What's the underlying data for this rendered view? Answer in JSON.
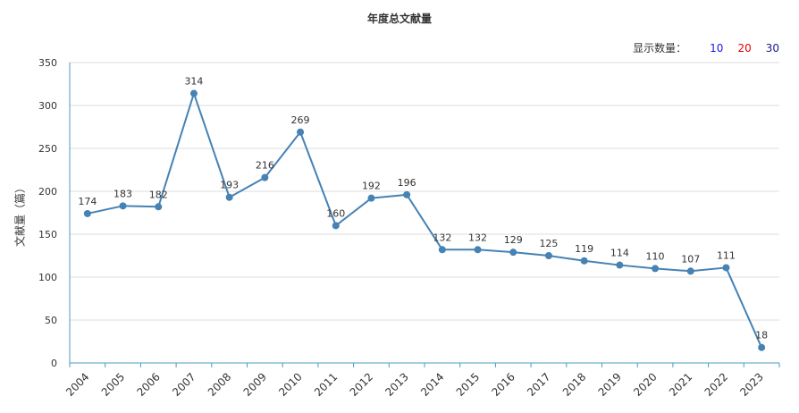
{
  "chart_data": {
    "type": "line",
    "title": "年度总文献量",
    "xlabel": "",
    "ylabel": "文献量（篇）",
    "categories": [
      "2004",
      "2005",
      "2006",
      "2007",
      "2008",
      "2009",
      "2010",
      "2011",
      "2012",
      "2013",
      "2014",
      "2015",
      "2016",
      "2017",
      "2018",
      "2019",
      "2020",
      "2021",
      "2022",
      "2023"
    ],
    "series": [
      {
        "values": [
          174,
          183,
          182,
          314,
          193,
          216,
          269,
          160,
          192,
          196,
          132,
          132,
          129,
          125,
          119,
          114,
          110,
          107,
          111,
          18
        ]
      }
    ],
    "ylim": [
      0,
      350
    ],
    "yticks": [
      0,
      50,
      100,
      150,
      200,
      250,
      300,
      350
    ],
    "grid": "horizontal",
    "line_color": "#4682b4",
    "axis_color": "#4a9bc1"
  },
  "count_selector": {
    "label": "显示数量：",
    "options": [
      {
        "label": "10",
        "color": "#1a1ae6"
      },
      {
        "label": "20",
        "color": "#e60000"
      },
      {
        "label": "30",
        "color": "#1a1a8c"
      }
    ]
  }
}
